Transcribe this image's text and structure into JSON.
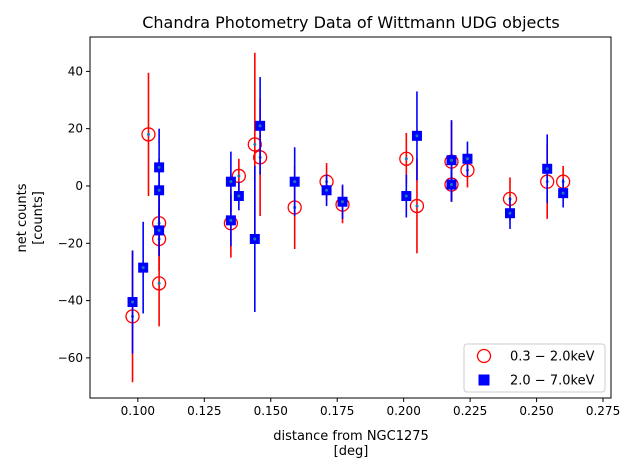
{
  "chart_data": {
    "type": "scatter",
    "title": "Chandra Photometry Data of Wittmann UDG objects",
    "xlabel": "distance from NGC1275",
    "xlabel_unit": "[deg]",
    "ylabel": "net counts",
    "ylabel_unit": "[counts]",
    "xlim": [
      0.082,
      0.278
    ],
    "ylim": [
      -74,
      52
    ],
    "xticks": [
      "0.100",
      "0.125",
      "0.150",
      "0.175",
      "0.200",
      "0.225",
      "0.250",
      "0.275"
    ],
    "xtick_values": [
      0.1,
      0.125,
      0.15,
      0.175,
      0.2,
      0.225,
      0.25,
      0.275
    ],
    "yticks": [
      "−60",
      "−40",
      "−20",
      "0",
      "20",
      "40"
    ],
    "ytick_values": [
      -60,
      -40,
      -20,
      0,
      20,
      40
    ],
    "grid": false,
    "legend_position": "lower-right",
    "series": [
      {
        "name": "0.3 − 2.0keV",
        "marker": "hollow-circle",
        "color": "#ff0000",
        "points": [
          {
            "x": 0.098,
            "y": -45.5,
            "yerr": 23
          },
          {
            "x": 0.104,
            "y": 18,
            "yerr": 21.5
          },
          {
            "x": 0.108,
            "y": -13,
            "yerr": 11
          },
          {
            "x": 0.108,
            "y": -18.5,
            "yerr": 11
          },
          {
            "x": 0.108,
            "y": -34,
            "yerr": 15
          },
          {
            "x": 0.135,
            "y": -13,
            "yerr": 12
          },
          {
            "x": 0.138,
            "y": 3.5,
            "yerr": 6
          },
          {
            "x": 0.144,
            "y": 14.5,
            "yerr": 32
          },
          {
            "x": 0.146,
            "y": 10,
            "yerr": 20.5
          },
          {
            "x": 0.159,
            "y": -7.5,
            "yerr": 14.5
          },
          {
            "x": 0.171,
            "y": 1.5,
            "yerr": 6.5
          },
          {
            "x": 0.177,
            "y": -6.5,
            "yerr": 6.5
          },
          {
            "x": 0.201,
            "y": 9.5,
            "yerr": 9
          },
          {
            "x": 0.205,
            "y": -7,
            "yerr": 16.5
          },
          {
            "x": 0.218,
            "y": 8.5,
            "yerr": 14
          },
          {
            "x": 0.218,
            "y": 0.5,
            "yerr": 6
          },
          {
            "x": 0.224,
            "y": 5.5,
            "yerr": 6
          },
          {
            "x": 0.24,
            "y": -4.5,
            "yerr": 7.5
          },
          {
            "x": 0.254,
            "y": 1.5,
            "yerr": 13
          },
          {
            "x": 0.26,
            "y": 1.5,
            "yerr": 5.5
          }
        ]
      },
      {
        "name": "2.0 − 7.0keV",
        "marker": "filled-square",
        "color": "#0000ff",
        "points": [
          {
            "x": 0.098,
            "y": -40.5,
            "yerr": 18
          },
          {
            "x": 0.102,
            "y": -28.5,
            "yerr": 16
          },
          {
            "x": 0.108,
            "y": 6.5,
            "yerr": 13.5
          },
          {
            "x": 0.108,
            "y": -1.5,
            "yerr": 11
          },
          {
            "x": 0.108,
            "y": -15.5,
            "yerr": 9
          },
          {
            "x": 0.135,
            "y": 1.5,
            "yerr": 10.5
          },
          {
            "x": 0.135,
            "y": -12,
            "yerr": 9
          },
          {
            "x": 0.138,
            "y": -3.5,
            "yerr": 5
          },
          {
            "x": 0.144,
            "y": -18.5,
            "yerr": 25.5
          },
          {
            "x": 0.146,
            "y": 21,
            "yerr": 17
          },
          {
            "x": 0.159,
            "y": 1.5,
            "yerr": 12
          },
          {
            "x": 0.171,
            "y": -1.5,
            "yerr": 5.5
          },
          {
            "x": 0.177,
            "y": -5.5,
            "yerr": 6
          },
          {
            "x": 0.201,
            "y": -3.5,
            "yerr": 7.5
          },
          {
            "x": 0.205,
            "y": 17.5,
            "yerr": 15.5
          },
          {
            "x": 0.218,
            "y": 9,
            "yerr": 14
          },
          {
            "x": 0.218,
            "y": 0.5,
            "yerr": 6
          },
          {
            "x": 0.224,
            "y": 9.5,
            "yerr": 6
          },
          {
            "x": 0.24,
            "y": -9.5,
            "yerr": 5.5
          },
          {
            "x": 0.254,
            "y": 6,
            "yerr": 12
          },
          {
            "x": 0.26,
            "y": -2.5,
            "yerr": 5
          }
        ]
      }
    ]
  }
}
